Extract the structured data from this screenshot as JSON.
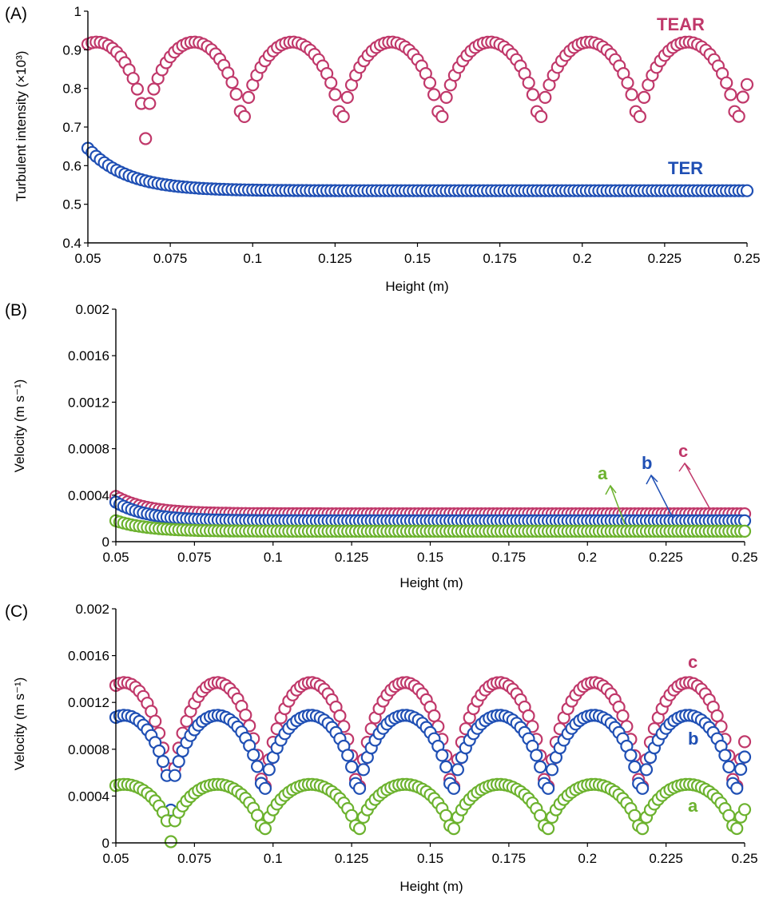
{
  "colors": {
    "red": "#c0386a",
    "blue": "#1f4fb4",
    "green": "#6cb22e",
    "axis": "#000000"
  },
  "chart_data": [
    {
      "panel_label": "(A)",
      "type": "scatter",
      "xlabel": "Height (m)",
      "ylabel": "Turbulent intensity (×10³)",
      "xlim": [
        0.05,
        0.25
      ],
      "ylim": [
        0.4,
        1.0
      ],
      "x_ticks": [
        "0.05",
        "0.075",
        "0.1",
        "0.125",
        "0.15",
        "0.175",
        "0.2",
        "0.225",
        "0.25"
      ],
      "y_ticks": [
        "0.4",
        "0.5",
        "0.6",
        "0.7",
        "0.8",
        "0.9",
        "1"
      ],
      "grid": false,
      "series": [
        {
          "name": "TEAR",
          "color": "red",
          "model": "periodic",
          "peak": 0.92,
          "trough": 0.67,
          "troughs": [
            0.0675,
            0.097,
            0.127,
            0.157,
            0.187,
            0.217,
            0.247
          ],
          "x_range": [
            0.05,
            0.25
          ]
        },
        {
          "name": "TER",
          "color": "blue",
          "model": "decay",
          "start": 0.645,
          "plateau": 0.535,
          "decay_m": 0.012,
          "x_range": [
            0.05,
            0.25
          ]
        }
      ]
    },
    {
      "panel_label": "(B)",
      "type": "scatter",
      "xlabel": "Height (m)",
      "ylabel": "Velocity (m s⁻¹)",
      "xlim": [
        0.05,
        0.25
      ],
      "ylim": [
        0,
        0.002
      ],
      "x_ticks": [
        "0.05",
        "0.075",
        "0.1",
        "0.125",
        "0.15",
        "0.175",
        "0.2",
        "0.225",
        "0.25"
      ],
      "y_ticks": [
        "0",
        "0.0004",
        "0.0008",
        "0.0012",
        "0.0016",
        "0.002"
      ],
      "grid": false,
      "series": [
        {
          "name": "c",
          "color": "red",
          "model": "decay",
          "start": 0.00039,
          "plateau": 0.00024,
          "decay_m": 0.01,
          "x_range": [
            0.05,
            0.25
          ]
        },
        {
          "name": "b",
          "color": "blue",
          "model": "decay",
          "start": 0.00034,
          "plateau": 0.00018,
          "decay_m": 0.01,
          "x_range": [
            0.05,
            0.25
          ]
        },
        {
          "name": "a",
          "color": "green",
          "model": "decay",
          "start": 0.00018,
          "plateau": 9e-05,
          "decay_m": 0.01,
          "x_range": [
            0.05,
            0.25
          ]
        }
      ]
    },
    {
      "panel_label": "(C)",
      "type": "scatter",
      "xlabel": "Height (m)",
      "ylabel": "Velocity (m s⁻¹)",
      "xlim": [
        0.05,
        0.25
      ],
      "ylim": [
        0,
        0.002
      ],
      "x_ticks": [
        "0.05",
        "0.075",
        "0.1",
        "0.125",
        "0.15",
        "0.175",
        "0.2",
        "0.225",
        "0.25"
      ],
      "y_ticks": [
        "0",
        "0.0004",
        "0.0008",
        "0.0012",
        "0.0016",
        "0.002"
      ],
      "grid": false,
      "series": [
        {
          "name": "c",
          "color": "red",
          "model": "periodic",
          "peak": 0.00137,
          "trough": 0.00022,
          "troughs": [
            0.0675,
            0.097,
            0.127,
            0.157,
            0.187,
            0.217,
            0.247
          ],
          "x_range": [
            0.05,
            0.25
          ]
        },
        {
          "name": "b",
          "color": "blue",
          "model": "periodic",
          "peak": 0.00109,
          "trough": 0.00028,
          "troughs": [
            0.0675,
            0.097,
            0.127,
            0.157,
            0.187,
            0.217,
            0.247
          ],
          "x_range": [
            0.05,
            0.25
          ]
        },
        {
          "name": "a",
          "color": "green",
          "model": "periodic",
          "peak": 0.0005,
          "trough": 1e-05,
          "troughs": [
            0.0675,
            0.097,
            0.127,
            0.157,
            0.187,
            0.217,
            0.247
          ],
          "x_range": [
            0.05,
            0.25
          ]
        }
      ]
    }
  ]
}
